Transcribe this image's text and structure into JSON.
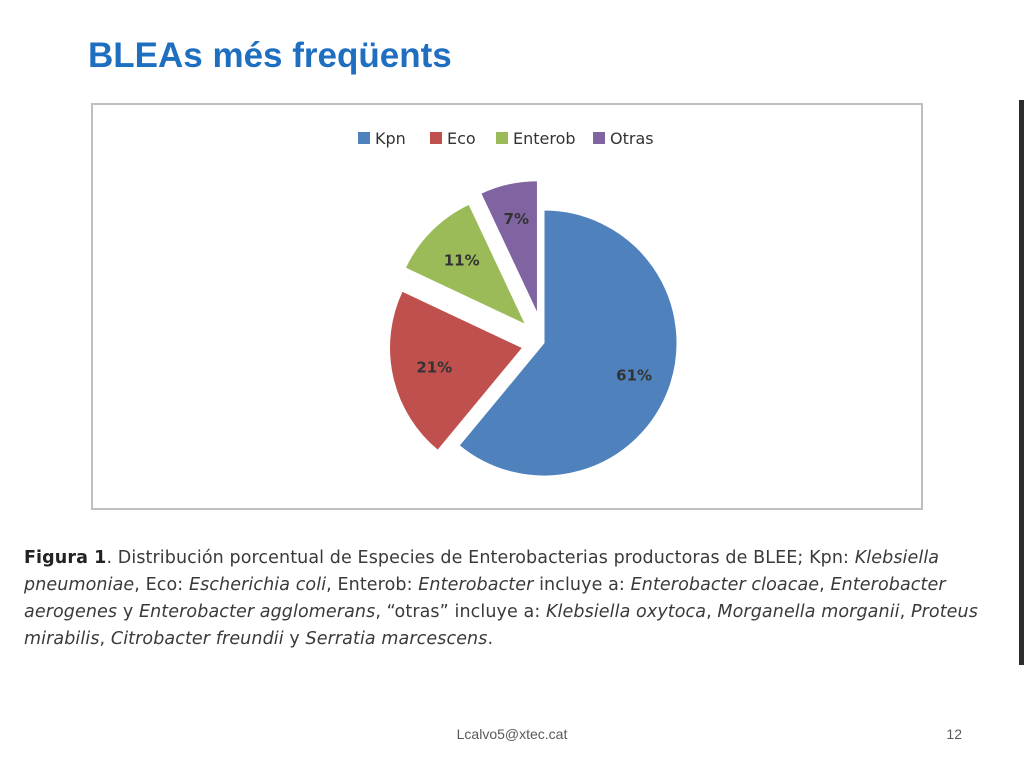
{
  "slide": {
    "title": "BLEAs més freqüents",
    "footer_email": "Lcalvo5@xtec.cat",
    "page_number": "12"
  },
  "chart_data": {
    "type": "pie",
    "exploded": true,
    "legend_position": "top",
    "categories": [
      "Kpn",
      "Eco",
      "Enterob",
      "Otras"
    ],
    "values": [
      61,
      21,
      11,
      7
    ],
    "labels": [
      "61%",
      "21%",
      "11%",
      "7%"
    ],
    "colors": [
      "#4f81bd",
      "#c0504d",
      "#9bbb59",
      "#8064a2"
    ]
  },
  "caption": {
    "figure_label": "Figura 1",
    "p1": ". Distribución porcentual de Especies de Enterobacterias productoras de BLEE; Kpn: ",
    "i1": "Klebsiella pneumoniae",
    "p2": ", Eco: ",
    "i2": "Escherichia coli",
    "p3": ", Enterob: ",
    "i3": "Enterobacter",
    "p4": " incluye a: ",
    "i4": "Enterobacter cloacae",
    "p5": ", ",
    "i5": "Enterobacter aerogenes",
    "p6": " y ",
    "i6": "Enterobacter agglomerans",
    "p7": ", “otras” incluye a: ",
    "i7": "Klebsiella oxytoca",
    "p8": ", ",
    "i8": "Morganella morganii",
    "p9": ", ",
    "i9": "Proteus mirabilis",
    "p10": ", ",
    "i10": "Citrobacter freundii",
    "p11": " y ",
    "i11": "Serratia marcescens",
    "p12": "."
  }
}
